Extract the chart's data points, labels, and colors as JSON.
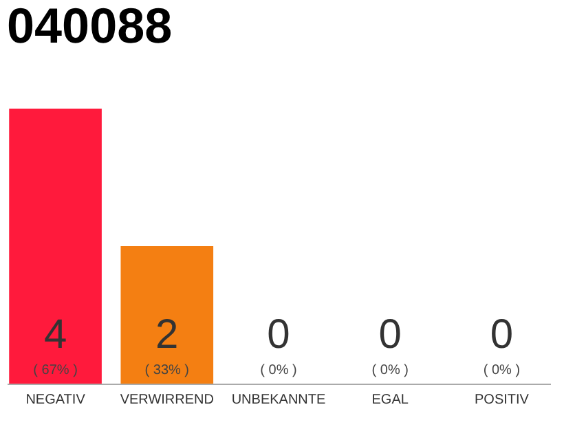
{
  "chart_data": {
    "type": "bar",
    "title": "040088",
    "categories": [
      "NEGATIV",
      "VERWIRREND",
      "UNBEKANNTE",
      "EGAL",
      "POSITIV"
    ],
    "values": [
      4,
      2,
      0,
      0,
      0
    ],
    "colors": [
      "#ff1a3c",
      "#f47f12",
      "#ff1a3c",
      "#ff1a3c",
      "#ff1a3c"
    ],
    "ylim": [
      0,
      4
    ],
    "tick_labels": "x",
    "grid": false,
    "data_labels": true,
    "annotations": [
      {
        "text": "( 67% )",
        "x": "NEGATIV",
        "y": 0
      },
      {
        "text": "( 33% )",
        "x": "VERWIRREND",
        "y": 0
      },
      {
        "text": "( 0% )",
        "x": "UNBEKANNTE",
        "y": 0
      },
      {
        "text": "( 0% )",
        "x": "EGAL",
        "y": 0
      },
      {
        "text": "( 0% )",
        "x": "POSITIV",
        "y": 0
      }
    ]
  }
}
